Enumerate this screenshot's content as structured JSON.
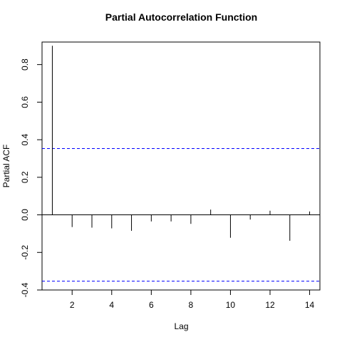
{
  "chart_data": {
    "type": "bar",
    "title": "Partial Autocorrelation Function",
    "xlabel": "Lag",
    "ylabel": "Partial ACF",
    "xlim": [
      0.48,
      14.52
    ],
    "ylim": [
      -0.4,
      0.92
    ],
    "x_ticks": [
      2,
      4,
      6,
      8,
      10,
      12,
      14
    ],
    "y_ticks": [
      -0.4,
      -0.2,
      0.0,
      0.2,
      0.4,
      0.6,
      0.8
    ],
    "x_tick_labels": [
      "2",
      "4",
      "6",
      "8",
      "10",
      "12",
      "14"
    ],
    "y_tick_labels": [
      "-0.4",
      "-0.2",
      "0.0",
      "0.2",
      "0.4",
      "0.6",
      "0.8"
    ],
    "lags": [
      1,
      2,
      3,
      4,
      5,
      6,
      7,
      8,
      9,
      10,
      11,
      12,
      13,
      14
    ],
    "values": [
      0.9,
      -0.065,
      -0.068,
      -0.072,
      -0.085,
      -0.035,
      -0.035,
      -0.048,
      0.028,
      -0.122,
      -0.025,
      0.022,
      -0.138,
      0.018
    ],
    "confidence_bound": 0.353,
    "grid": false,
    "colors": {
      "bars": "#000000",
      "bounds": "#0000ff",
      "zero_line": "#000000"
    }
  }
}
